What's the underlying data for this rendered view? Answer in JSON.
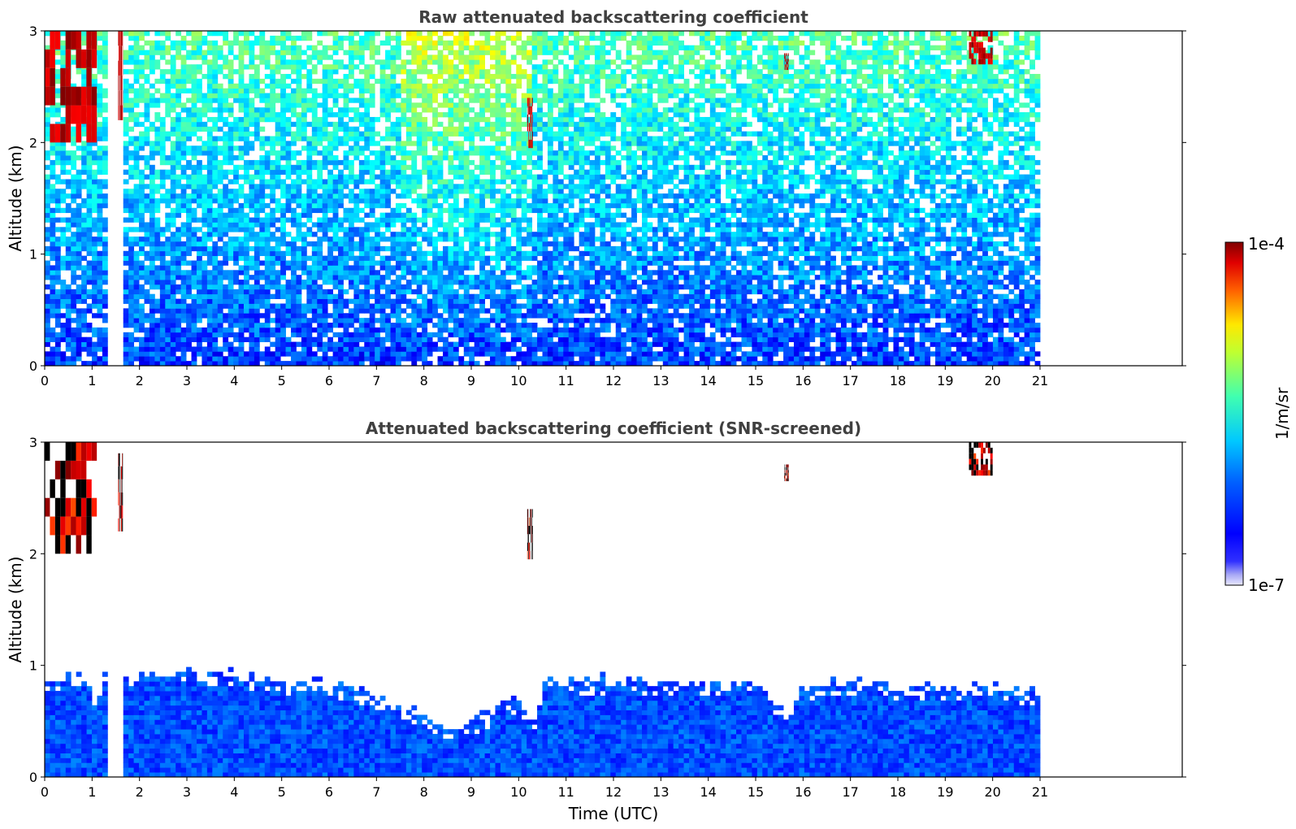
{
  "chart_data": [
    {
      "type": "heatmap",
      "title": "Raw attenuated backscattering coefficient",
      "xlabel": "",
      "ylabel": "Altitude (km)",
      "xlim": [
        0,
        24
      ],
      "ylim": [
        0,
        3
      ],
      "x_ticks": [
        "0",
        "1",
        "2",
        "3",
        "4",
        "5",
        "6",
        "7",
        "8",
        "9",
        "10",
        "11",
        "12",
        "13",
        "14",
        "15",
        "16",
        "17",
        "18",
        "19",
        "20",
        "21"
      ],
      "y_ticks": [
        "0",
        "1",
        "2",
        "3"
      ],
      "data_extent_hours": [
        0,
        21
      ],
      "gap_hours": [
        1.42,
        1.55
      ],
      "cloud_patches": [
        {
          "t": [
            0.0,
            1.1
          ],
          "alt": [
            2.0,
            3.0
          ]
        },
        {
          "t": [
            1.55,
            1.65
          ],
          "alt": [
            2.2,
            3.0
          ]
        },
        {
          "t": [
            10.18,
            10.3
          ],
          "alt": [
            1.95,
            2.4
          ]
        },
        {
          "t": [
            15.6,
            15.7
          ],
          "alt": [
            2.65,
            2.8
          ]
        },
        {
          "t": [
            19.5,
            20.0
          ],
          "alt": [
            2.7,
            3.0
          ]
        }
      ]
    },
    {
      "type": "heatmap",
      "title": "Attenuated backscattering coefficient (SNR-screened)",
      "xlabel": "Time (UTC)",
      "ylabel": "Altitude (km)",
      "xlim": [
        0,
        24
      ],
      "ylim": [
        0,
        3
      ],
      "x_ticks": [
        "0",
        "1",
        "2",
        "3",
        "4",
        "5",
        "6",
        "7",
        "8",
        "9",
        "10",
        "11",
        "12",
        "13",
        "14",
        "15",
        "16",
        "17",
        "18",
        "19",
        "20",
        "21"
      ],
      "y_ticks": [
        "0",
        "1",
        "2",
        "3"
      ],
      "data_extent_hours": [
        0,
        21
      ],
      "gap_hours": [
        1.42,
        1.55
      ],
      "boundary_layer_top_km": [
        [
          0.0,
          0.85
        ],
        [
          1.0,
          0.85
        ],
        [
          1.1,
          0.6
        ],
        [
          1.2,
          0.85
        ],
        [
          2.0,
          0.9
        ],
        [
          3.0,
          0.95
        ],
        [
          4.0,
          0.9
        ],
        [
          5.0,
          0.85
        ],
        [
          6.0,
          0.82
        ],
        [
          6.5,
          0.78
        ],
        [
          7.0,
          0.7
        ],
        [
          7.5,
          0.62
        ],
        [
          8.0,
          0.52
        ],
        [
          8.5,
          0.45
        ],
        [
          9.0,
          0.48
        ],
        [
          9.5,
          0.58
        ],
        [
          10.0,
          0.7
        ],
        [
          10.3,
          0.45
        ],
        [
          10.5,
          0.82
        ],
        [
          11.0,
          0.85
        ],
        [
          12.0,
          0.84
        ],
        [
          13.0,
          0.84
        ],
        [
          14.0,
          0.84
        ],
        [
          15.0,
          0.82
        ],
        [
          15.7,
          0.55
        ],
        [
          16.0,
          0.8
        ],
        [
          17.0,
          0.82
        ],
        [
          18.0,
          0.8
        ],
        [
          19.0,
          0.78
        ],
        [
          20.0,
          0.78
        ],
        [
          21.0,
          0.75
        ]
      ],
      "cloud_patches": [
        {
          "t": [
            0.0,
            1.1
          ],
          "alt": [
            2.0,
            3.0
          ]
        },
        {
          "t": [
            1.55,
            1.65
          ],
          "alt": [
            2.2,
            2.9
          ]
        },
        {
          "t": [
            10.18,
            10.3
          ],
          "alt": [
            1.95,
            2.4
          ]
        },
        {
          "t": [
            15.6,
            15.7
          ],
          "alt": [
            2.65,
            2.8
          ]
        },
        {
          "t": [
            19.5,
            20.0
          ],
          "alt": [
            2.7,
            3.0
          ]
        }
      ]
    }
  ],
  "colorbar": {
    "label": "1/m/sr",
    "max_label": "1e-4",
    "min_label": "1e-7",
    "colormap": "jet"
  }
}
